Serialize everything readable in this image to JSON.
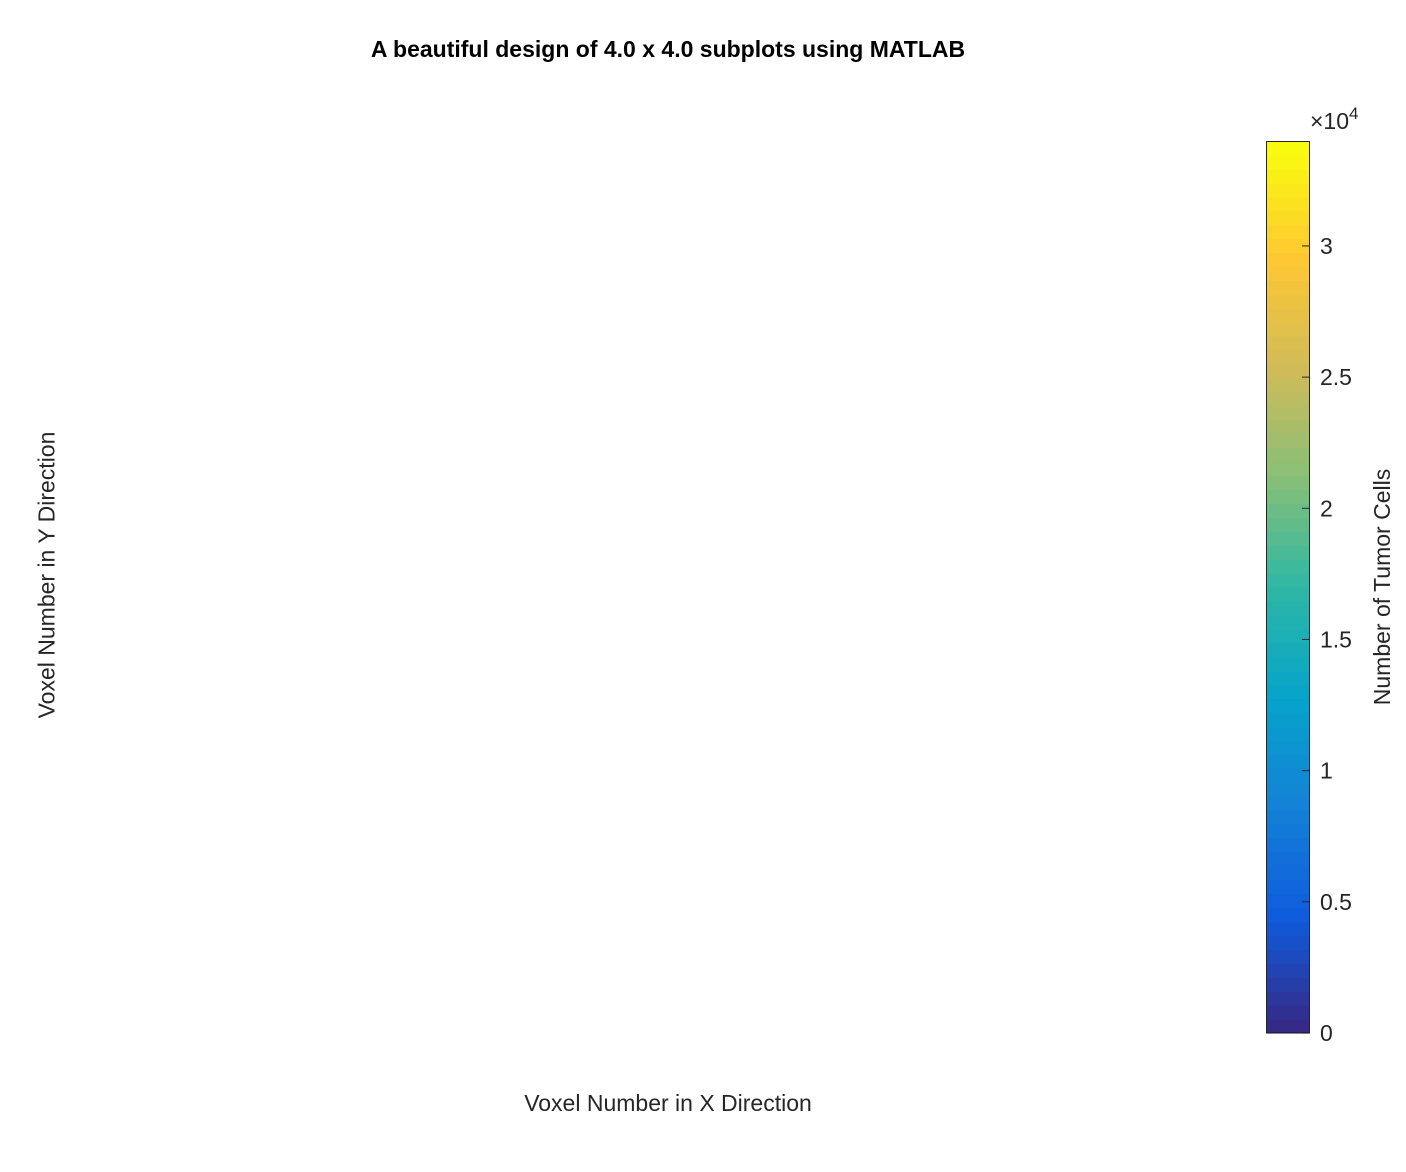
{
  "figure": {
    "title": "A beautiful design of 4.0 x 4.0 subplots using MATLAB",
    "xlabel": "Voxel Number in X Direction",
    "ylabel": "Voxel Number in Y Direction"
  },
  "chart_data": {
    "type": "heatmap",
    "title": "A beautiful design of 4.0 x 4.0 subplots using MATLAB",
    "xlabel": "Voxel Number in X Direction",
    "ylabel": "Voxel Number in Y Direction",
    "data": [],
    "colorbar": {
      "label": "Number of Tumor Cells",
      "exponent_label": "×10",
      "exponent": "4",
      "range": [
        0,
        34000
      ],
      "ticks": [
        0,
        5000,
        10000,
        15000,
        20000,
        25000,
        30000
      ],
      "tick_labels": [
        "0",
        "0.5",
        "1",
        "1.5",
        "2",
        "2.5",
        "3"
      ],
      "colormap": "parula",
      "colormap_stops": [
        "#352a87",
        "#0f5cdd",
        "#1481d6",
        "#06a4ca",
        "#2eb7a4",
        "#87bf77",
        "#d1bb59",
        "#fec832",
        "#f9fb0e"
      ]
    }
  }
}
